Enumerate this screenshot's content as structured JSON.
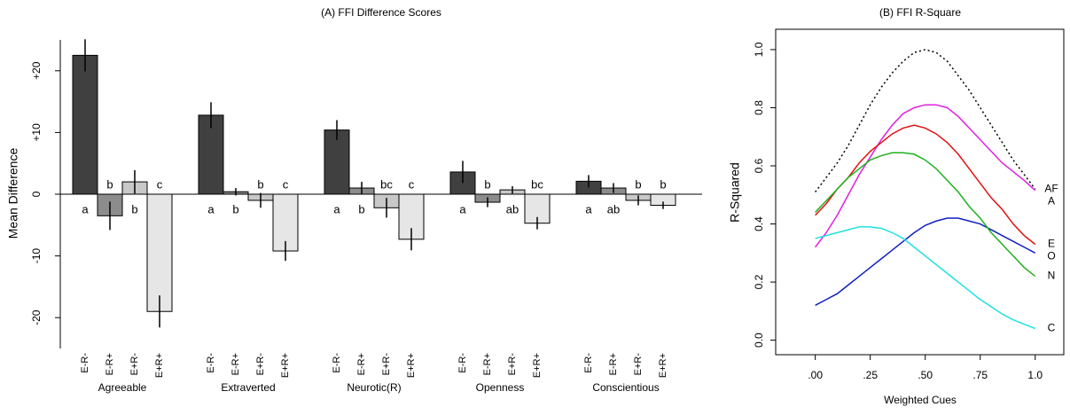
{
  "chart_data": [
    {
      "type": "bar",
      "title": "(A) FFI Difference Scores",
      "ylabel": "Mean Difference",
      "categories": [
        "Agreeable",
        "Extraverted",
        "Neurotic(R)",
        "Openness",
        "Conscientious"
      ],
      "ylim": [
        -25,
        25
      ],
      "yticks": [
        -20,
        -10,
        0,
        {
          "value": 10,
          "label": "+10"
        },
        {
          "value": 20,
          "label": "+20"
        }
      ],
      "series": [
        {
          "name": "E-R-",
          "color": "#404040",
          "values": [
            22.5,
            12.8,
            10.4,
            3.6,
            2.1
          ],
          "errors": [
            2.6,
            2.1,
            1.6,
            1.8,
            1.0
          ],
          "letters": [
            "a",
            "a",
            "a",
            "a",
            "a"
          ]
        },
        {
          "name": "E-R+",
          "color": "#8c8c8c",
          "values": [
            -3.5,
            0.4,
            1.0,
            -1.3,
            1.0
          ],
          "errors": [
            2.3,
            0.6,
            1.0,
            0.8,
            0.8
          ],
          "letters": [
            "b",
            "b",
            "b",
            "b",
            "ab"
          ]
        },
        {
          "name": "E+R-",
          "color": "#c8c8c8",
          "values": [
            2.0,
            -1.0,
            -2.2,
            0.7,
            -1.0
          ],
          "errors": [
            1.9,
            1.2,
            1.6,
            0.6,
            0.8
          ],
          "letters": [
            "b",
            "b",
            "bc",
            "ab",
            "b"
          ]
        },
        {
          "name": "E+R+",
          "color": "#e6e6e6",
          "values": [
            -19.0,
            -9.2,
            -7.3,
            -4.7,
            -1.8
          ],
          "errors": [
            2.6,
            1.6,
            1.8,
            1.0,
            0.6
          ],
          "letters": [
            "c",
            "c",
            "c",
            "bc",
            "b"
          ]
        }
      ]
    },
    {
      "type": "line",
      "title": "(B) FFI R-Square",
      "xlabel": "Weighted Cues",
      "ylabel": "R-Squared",
      "xlim": [
        -0.18,
        1.13
      ],
      "ylim": [
        -0.05,
        1.07
      ],
      "xticks": [
        {
          "value": 0,
          "label": ".00"
        },
        {
          "value": 0.25,
          "label": ".25"
        },
        {
          "value": 0.5,
          "label": ".50"
        },
        {
          "value": 0.75,
          "label": ".75"
        },
        {
          "value": 1,
          "label": "1.0"
        }
      ],
      "yticks": [
        {
          "value": 0,
          "label": "0.0"
        },
        0.2,
        0.4,
        0.6,
        0.8,
        {
          "value": 1,
          "label": "1.0"
        }
      ],
      "x": [
        0,
        0.05,
        0.1,
        0.15,
        0.2,
        0.25,
        0.3,
        0.35,
        0.4,
        0.45,
        0.5,
        0.55,
        0.6,
        0.65,
        0.7,
        0.75,
        0.8,
        0.85,
        0.9,
        0.95,
        1
      ],
      "series": [
        {
          "name": "AF",
          "color": "#000000",
          "linestyle": "dotted",
          "values": [
            0.51,
            0.56,
            0.61,
            0.67,
            0.74,
            0.81,
            0.87,
            0.92,
            0.96,
            0.99,
            1.0,
            0.99,
            0.96,
            0.91,
            0.86,
            0.8,
            0.74,
            0.68,
            0.62,
            0.57,
            0.52
          ]
        },
        {
          "name": "A",
          "color": "#e020e0",
          "linestyle": "solid",
          "values": [
            0.32,
            0.37,
            0.43,
            0.5,
            0.57,
            0.63,
            0.69,
            0.74,
            0.78,
            0.8,
            0.81,
            0.81,
            0.8,
            0.77,
            0.73,
            0.69,
            0.65,
            0.61,
            0.58,
            0.55,
            0.515
          ]
        },
        {
          "name": "E",
          "color": "#e01010",
          "linestyle": "solid",
          "values": [
            0.43,
            0.47,
            0.52,
            0.56,
            0.61,
            0.65,
            0.68,
            0.71,
            0.73,
            0.74,
            0.73,
            0.71,
            0.68,
            0.64,
            0.59,
            0.54,
            0.49,
            0.45,
            0.4,
            0.36,
            0.33
          ]
        },
        {
          "name": "O",
          "color": "#1020c0",
          "linestyle": "solid",
          "values": [
            0.12,
            0.14,
            0.16,
            0.19,
            0.22,
            0.25,
            0.28,
            0.31,
            0.34,
            0.37,
            0.395,
            0.41,
            0.42,
            0.42,
            0.41,
            0.4,
            0.38,
            0.36,
            0.34,
            0.32,
            0.3
          ]
        },
        {
          "name": "N",
          "color": "#20b020",
          "linestyle": "solid",
          "values": [
            0.44,
            0.48,
            0.52,
            0.56,
            0.59,
            0.62,
            0.635,
            0.645,
            0.645,
            0.64,
            0.62,
            0.59,
            0.55,
            0.51,
            0.46,
            0.42,
            0.37,
            0.33,
            0.29,
            0.25,
            0.22
          ]
        },
        {
          "name": "C",
          "color": "#20e0e0",
          "linestyle": "solid",
          "values": [
            0.35,
            0.36,
            0.37,
            0.38,
            0.39,
            0.39,
            0.385,
            0.37,
            0.35,
            0.32,
            0.29,
            0.26,
            0.23,
            0.2,
            0.17,
            0.14,
            0.115,
            0.09,
            0.07,
            0.055,
            0.04
          ]
        }
      ]
    }
  ]
}
